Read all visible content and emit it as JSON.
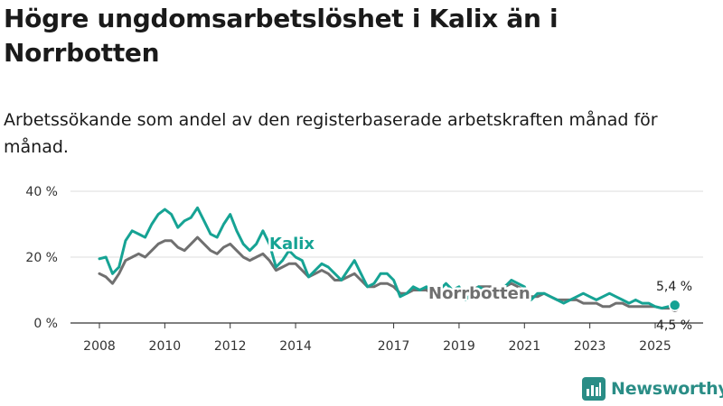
{
  "title": "Högre ungdomsarbetslöshet i Kalix än i Norrbotten",
  "subtitle": "Arbetssökande som andel av den registerbaserade arbetskraften månad för månad.",
  "brand": {
    "name": "Newsworthy"
  },
  "colors": {
    "kalix": "#16a394",
    "norrbotten": "#707070",
    "grid": "#dddddd",
    "axis": "#333333",
    "brand": "#2a8d86"
  },
  "chart_data": {
    "type": "line",
    "title": "Högre ungdomsarbetslöshet i Kalix än i Norrbotten",
    "xlabel": "",
    "ylabel": "",
    "ylim": [
      0,
      40
    ],
    "xlim": [
      2008,
      2025.8
    ],
    "y_ticks": [
      {
        "value": 0,
        "label": "0 %"
      },
      {
        "value": 20,
        "label": "20 %"
      },
      {
        "value": 40,
        "label": "40 %"
      }
    ],
    "x_ticks": [
      {
        "value": 2008,
        "label": "2008"
      },
      {
        "value": 2010,
        "label": "2010"
      },
      {
        "value": 2012,
        "label": "2012"
      },
      {
        "value": 2014,
        "label": "2014"
      },
      {
        "value": 2017,
        "label": "2017"
      },
      {
        "value": 2019,
        "label": "2019"
      },
      {
        "value": 2021,
        "label": "2021"
      },
      {
        "value": 2023,
        "label": "2023"
      },
      {
        "value": 2025,
        "label": "2025"
      }
    ],
    "series": [
      {
        "name": "Kalix",
        "x": [
          2008.0,
          2008.2,
          2008.4,
          2008.6,
          2008.8,
          2009.0,
          2009.2,
          2009.4,
          2009.6,
          2009.8,
          2010.0,
          2010.2,
          2010.4,
          2010.6,
          2010.8,
          2011.0,
          2011.2,
          2011.4,
          2011.6,
          2011.8,
          2012.0,
          2012.2,
          2012.4,
          2012.6,
          2012.8,
          2013.0,
          2013.2,
          2013.4,
          2013.6,
          2013.8,
          2014.0,
          2014.2,
          2014.4,
          2014.6,
          2014.8,
          2015.0,
          2015.2,
          2015.4,
          2015.6,
          2015.8,
          2016.0,
          2016.2,
          2016.4,
          2016.6,
          2016.8,
          2017.0,
          2017.2,
          2017.4,
          2017.6,
          2017.8,
          2018.0,
          2018.2,
          2018.4,
          2018.6,
          2018.8,
          2019.0,
          2019.2,
          2019.4,
          2019.6,
          2019.8,
          2020.0,
          2020.2,
          2020.4,
          2020.6,
          2020.8,
          2021.0,
          2021.2,
          2021.4,
          2021.6,
          2021.8,
          2022.0,
          2022.2,
          2022.4,
          2022.6,
          2022.8,
          2023.0,
          2023.2,
          2023.4,
          2023.6,
          2023.8,
          2024.0,
          2024.2,
          2024.4,
          2024.6,
          2024.8,
          2025.0,
          2025.2,
          2025.4,
          2025.6
        ],
        "values": [
          19.5,
          20,
          15,
          17,
          25,
          28,
          27,
          26,
          30,
          33,
          34.5,
          33,
          29,
          31,
          32,
          35,
          31,
          27,
          26,
          30,
          33,
          28,
          24,
          22,
          24,
          28,
          24,
          17,
          19,
          22,
          20,
          19,
          14,
          16,
          18,
          17,
          15,
          13,
          16,
          19,
          15,
          11,
          12,
          15,
          15,
          13,
          8,
          9,
          11,
          10,
          11,
          9,
          10,
          12,
          10,
          11,
          7,
          9,
          11,
          10,
          9,
          10,
          11,
          13,
          12,
          11,
          7,
          9,
          9,
          8,
          7,
          6,
          7,
          8,
          9,
          8,
          7,
          8,
          9,
          8,
          7,
          6,
          7,
          6,
          6,
          5,
          4.5,
          5,
          5.4
        ]
      },
      {
        "name": "Norrbotten",
        "x": [
          2008.0,
          2008.2,
          2008.4,
          2008.6,
          2008.8,
          2009.0,
          2009.2,
          2009.4,
          2009.6,
          2009.8,
          2010.0,
          2010.2,
          2010.4,
          2010.6,
          2010.8,
          2011.0,
          2011.2,
          2011.4,
          2011.6,
          2011.8,
          2012.0,
          2012.2,
          2012.4,
          2012.6,
          2012.8,
          2013.0,
          2013.2,
          2013.4,
          2013.6,
          2013.8,
          2014.0,
          2014.2,
          2014.4,
          2014.6,
          2014.8,
          2015.0,
          2015.2,
          2015.4,
          2015.6,
          2015.8,
          2016.0,
          2016.2,
          2016.4,
          2016.6,
          2016.8,
          2017.0,
          2017.2,
          2017.4,
          2017.6,
          2017.8,
          2018.0,
          2018.2,
          2018.4,
          2018.6,
          2018.8,
          2019.0,
          2019.2,
          2019.4,
          2019.6,
          2019.8,
          2020.0,
          2020.2,
          2020.4,
          2020.6,
          2020.8,
          2021.0,
          2021.2,
          2021.4,
          2021.6,
          2021.8,
          2022.0,
          2022.2,
          2022.4,
          2022.6,
          2022.8,
          2023.0,
          2023.2,
          2023.4,
          2023.6,
          2023.8,
          2024.0,
          2024.2,
          2024.4,
          2024.6,
          2024.8,
          2025.0,
          2025.2,
          2025.4,
          2025.6
        ],
        "values": [
          15,
          14,
          12,
          15,
          19,
          20,
          21,
          20,
          22,
          24,
          25,
          25,
          23,
          22,
          24,
          26,
          24,
          22,
          21,
          23,
          24,
          22,
          20,
          19,
          20,
          21,
          19,
          16,
          17,
          18,
          18,
          16,
          14,
          15,
          16,
          15,
          13,
          13,
          14,
          15,
          13,
          11,
          11,
          12,
          12,
          11,
          9,
          9,
          10,
          10,
          10,
          9,
          9,
          10,
          10,
          10,
          9,
          10,
          11,
          11,
          11,
          10,
          11,
          12,
          11,
          10,
          8,
          8,
          9,
          8,
          7,
          7,
          7,
          7,
          6,
          6,
          6,
          5,
          5,
          6,
          6,
          5,
          5,
          5,
          5,
          5,
          4.5,
          4.5,
          4.5
        ]
      }
    ],
    "line_labels": {
      "kalix": "Kalix",
      "norrbotten": "Norrbotten"
    },
    "end_labels": {
      "kalix": "5,4 %",
      "norrbotten": "4,5 %"
    }
  }
}
